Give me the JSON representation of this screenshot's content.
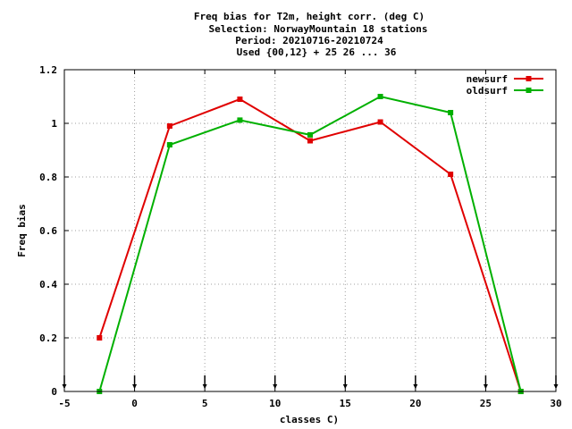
{
  "chart_data": {
    "type": "line",
    "title_lines": [
      "Freq bias  for T2m, height corr. (deg C)",
      "Selection: NorwayMountain     18 stations",
      "Period: 20210716-20210724",
      "Used {00,12} + 25 26 ... 36"
    ],
    "xlabel": "classes C)",
    "ylabel": "Freq bias",
    "xlim": [
      -5,
      30
    ],
    "ylim": [
      0,
      1.2
    ],
    "xticks": [
      -5,
      0,
      5,
      10,
      15,
      20,
      25,
      30
    ],
    "xtick_labels": [
      "-5",
      "0",
      "5",
      "10",
      "15",
      "20",
      "25",
      "30"
    ],
    "yticks": [
      0,
      0.2,
      0.4,
      0.6,
      0.8,
      1,
      1.2
    ],
    "ytick_labels": [
      "0",
      "0.2",
      "0.4",
      "0.6",
      "0.8",
      "1",
      "1.2"
    ],
    "grid": true,
    "legend_position": "top-right",
    "x": [
      -2.5,
      2.5,
      7.5,
      12.5,
      17.5,
      22.5,
      27.5
    ],
    "series": [
      {
        "name": "newsurf",
        "color": "#e00000",
        "values": [
          0.2,
          0.99,
          1.09,
          0.935,
          1.005,
          0.81,
          0.0
        ]
      },
      {
        "name": "oldsurf",
        "color": "#00b000",
        "values": [
          0.0,
          0.92,
          1.012,
          0.957,
          1.1,
          1.04,
          0.0
        ]
      }
    ],
    "bottom_markers_x": [
      -5,
      0,
      5,
      10,
      15,
      20,
      25,
      30
    ]
  }
}
